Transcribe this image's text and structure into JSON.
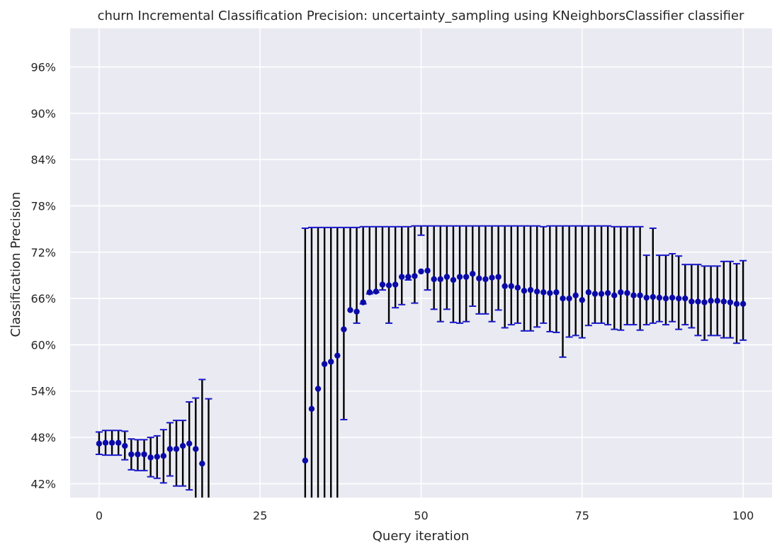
{
  "chart_data": {
    "type": "scatter",
    "title": "churn Incremental Classification Precision: uncertainty_sampling using KNeighborsClassifier classifier",
    "xlabel": "Query iteration",
    "ylabel": "Classification Precision",
    "xlim": [
      -4.5,
      104.5
    ],
    "ylim": [
      40.2,
      101.0
    ],
    "x_ticks": [
      0,
      25,
      50,
      75,
      100
    ],
    "x_tick_labels": [
      "0",
      "25",
      "50",
      "75",
      "100"
    ],
    "y_ticks": [
      42,
      48,
      54,
      60,
      66,
      72,
      78,
      84,
      90,
      96
    ],
    "y_tick_labels": [
      "42%",
      "48%",
      "54%",
      "60%",
      "66%",
      "72%",
      "78%",
      "84%",
      "90%",
      "96%"
    ],
    "grid": true,
    "legend": "none",
    "colors": {
      "background": "#eaeaf2",
      "grid": "#ffffff",
      "marker": "#0a0aa8",
      "errorbar": "#000000",
      "cap": "#1a1acc"
    },
    "series": [
      {
        "x": [
          0,
          1,
          2,
          3,
          4,
          5,
          6,
          7,
          8,
          9,
          10,
          11,
          12,
          13,
          14,
          15,
          16,
          17,
          32,
          33,
          34,
          35,
          36,
          37,
          38,
          39,
          40,
          41,
          42,
          43,
          44,
          45,
          46,
          47,
          48,
          49,
          50,
          51,
          52,
          53,
          54,
          55,
          56,
          57,
          58,
          59,
          60,
          61,
          62,
          63,
          64,
          65,
          66,
          67,
          68,
          69,
          70,
          71,
          72,
          73,
          74,
          75,
          76,
          77,
          78,
          79,
          80,
          81,
          82,
          83,
          84,
          85,
          86,
          87,
          88,
          89,
          90,
          91,
          92,
          93,
          94,
          95,
          96,
          97,
          98,
          99,
          100
        ],
        "y": [
          47.2,
          47.3,
          47.3,
          47.3,
          46.9,
          45.8,
          45.8,
          45.8,
          45.4,
          45.5,
          45.6,
          46.5,
          46.5,
          46.9,
          47.2,
          46.5,
          44.6,
          null,
          45.0,
          51.7,
          54.3,
          57.5,
          57.8,
          58.6,
          62.0,
          64.5,
          64.3,
          65.5,
          66.8,
          66.9,
          67.8,
          67.7,
          67.8,
          68.8,
          68.8,
          68.9,
          69.5,
          69.6,
          68.5,
          68.5,
          68.8,
          68.4,
          68.8,
          68.8,
          69.2,
          68.6,
          68.5,
          68.7,
          68.8,
          67.6,
          67.6,
          67.4,
          67.0,
          67.1,
          66.9,
          66.8,
          66.7,
          66.8,
          66.0,
          66.0,
          66.4,
          65.8,
          66.8,
          66.6,
          66.6,
          66.7,
          66.4,
          66.8,
          66.7,
          66.4,
          66.4,
          66.1,
          66.2,
          66.1,
          66.0,
          66.1,
          66.0,
          66.0,
          65.6,
          65.6,
          65.5,
          65.7,
          65.7,
          65.6,
          65.5,
          65.3,
          65.3
        ],
        "err_low": [
          45.8,
          45.7,
          45.7,
          45.7,
          45.1,
          43.8,
          43.7,
          43.7,
          42.9,
          42.7,
          42.1,
          43.0,
          41.7,
          41.7,
          41.2,
          38.0,
          34.0,
          34.0,
          34.0,
          34.0,
          34.0,
          34.0,
          34.0,
          34.0,
          50.3,
          null,
          62.8,
          65.3,
          66.6,
          66.8,
          67.1,
          62.8,
          64.8,
          65.2,
          68.4,
          65.4,
          74.2,
          67.1,
          64.6,
          63.0,
          64.6,
          62.9,
          62.8,
          63.0,
          65.0,
          64.0,
          64.0,
          63.0,
          64.5,
          62.2,
          62.6,
          62.8,
          61.8,
          61.8,
          62.3,
          62.8,
          61.7,
          61.6,
          58.4,
          61.0,
          61.2,
          60.9,
          62.5,
          62.8,
          62.8,
          62.6,
          62.0,
          61.9,
          62.6,
          62.6,
          61.9,
          62.6,
          62.8,
          63.0,
          62.6,
          63.0,
          62.0,
          62.6,
          62.2,
          61.2,
          60.6,
          61.2,
          61.2,
          60.9,
          60.9,
          60.2,
          60.6
        ],
        "err_high": [
          48.7,
          48.9,
          48.9,
          48.9,
          48.8,
          47.8,
          47.7,
          47.7,
          48.0,
          48.2,
          49.0,
          49.9,
          50.2,
          50.2,
          52.6,
          53.1,
          55.5,
          53.0,
          75.1,
          75.2,
          75.2,
          75.2,
          75.2,
          75.2,
          75.2,
          75.2,
          75.2,
          75.3,
          75.3,
          75.3,
          75.3,
          75.3,
          75.3,
          75.3,
          75.3,
          75.4,
          75.4,
          75.4,
          75.4,
          75.4,
          75.4,
          75.4,
          75.4,
          75.4,
          75.4,
          75.4,
          75.4,
          75.4,
          75.4,
          75.4,
          75.4,
          75.4,
          75.4,
          75.4,
          75.4,
          75.3,
          75.4,
          75.4,
          75.4,
          75.4,
          75.4,
          75.4,
          75.4,
          75.4,
          75.4,
          75.4,
          75.3,
          75.3,
          75.3,
          75.3,
          75.3,
          71.6,
          75.1,
          71.6,
          71.6,
          71.8,
          71.5,
          70.4,
          70.4,
          70.4,
          70.2,
          70.2,
          70.2,
          70.8,
          70.8,
          70.5,
          70.9
        ]
      }
    ]
  }
}
